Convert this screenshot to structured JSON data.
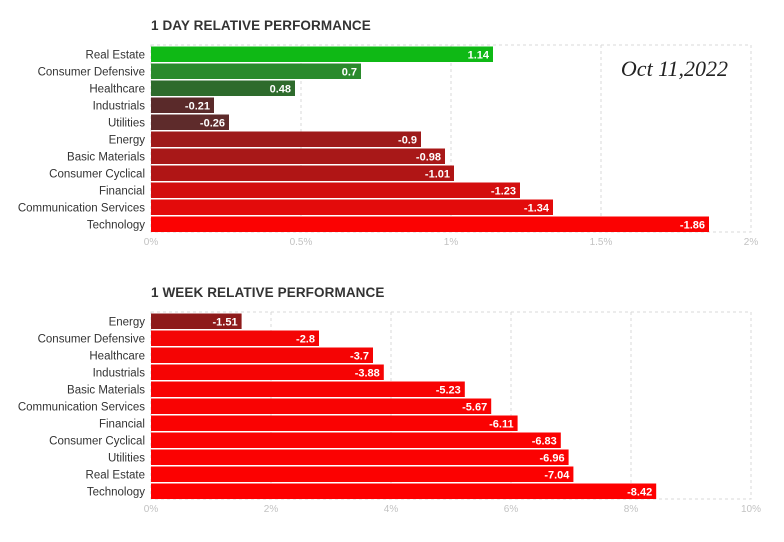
{
  "chart_data": [
    {
      "type": "bar",
      "orientation": "horizontal",
      "title": "1 DAY RELATIVE PERFORMANCE",
      "categories": [
        "Real Estate",
        "Consumer Defensive",
        "Healthcare",
        "Industrials",
        "Utilities",
        "Energy",
        "Basic Materials",
        "Consumer Cyclical",
        "Financial",
        "Communication Services",
        "Technology"
      ],
      "values": [
        1.14,
        0.7,
        0.48,
        -0.21,
        -0.26,
        -0.9,
        -0.98,
        -1.01,
        -1.23,
        -1.34,
        -1.86
      ],
      "value_labels": [
        "1.14",
        "0.7",
        "0.48",
        "-0.21",
        "-0.26",
        "-0.9",
        "-0.98",
        "-1.01",
        "-1.23",
        "-1.34",
        "-1.86"
      ],
      "bar_colors": [
        "#0fb915",
        "#2a8a2c",
        "#2e6b2c",
        "#5a2a2a",
        "#5e2b2b",
        "#9e1a1a",
        "#a81818",
        "#b01515",
        "#d30e0e",
        "#e30b0b",
        "#fb0202"
      ],
      "xticks": [
        "0%",
        "0.5%",
        "1%",
        "1.5%",
        "2%"
      ],
      "xlim": [
        0,
        2
      ],
      "bar_length": "absolute value",
      "grid": true,
      "annotation": "Oct 11,2022"
    },
    {
      "type": "bar",
      "orientation": "horizontal",
      "title": "1 WEEK RELATIVE PERFORMANCE",
      "categories": [
        "Energy",
        "Consumer Defensive",
        "Healthcare",
        "Industrials",
        "Basic Materials",
        "Communication Services",
        "Financial",
        "Consumer Cyclical",
        "Utilities",
        "Real Estate",
        "Technology"
      ],
      "values": [
        -1.51,
        -2.8,
        -3.7,
        -3.88,
        -5.23,
        -5.67,
        -6.11,
        -6.83,
        -6.96,
        -7.04,
        -8.42
      ],
      "value_labels": [
        "-1.51",
        "-2.8",
        "-3.7",
        "-3.88",
        "-5.23",
        "-5.67",
        "-6.11",
        "-6.83",
        "-6.96",
        "-7.04",
        "-8.42"
      ],
      "bar_colors": [
        "#8e1a1a",
        "#f40505",
        "#f50404",
        "#f60404",
        "#f80303",
        "#f90303",
        "#fa0202",
        "#fb0202",
        "#fb0202",
        "#fc0101",
        "#fe0000"
      ],
      "xticks": [
        "0%",
        "2%",
        "4%",
        "6%",
        "8%",
        "10%"
      ],
      "xlim": [
        0,
        10
      ],
      "bar_length": "absolute value",
      "grid": true
    }
  ]
}
